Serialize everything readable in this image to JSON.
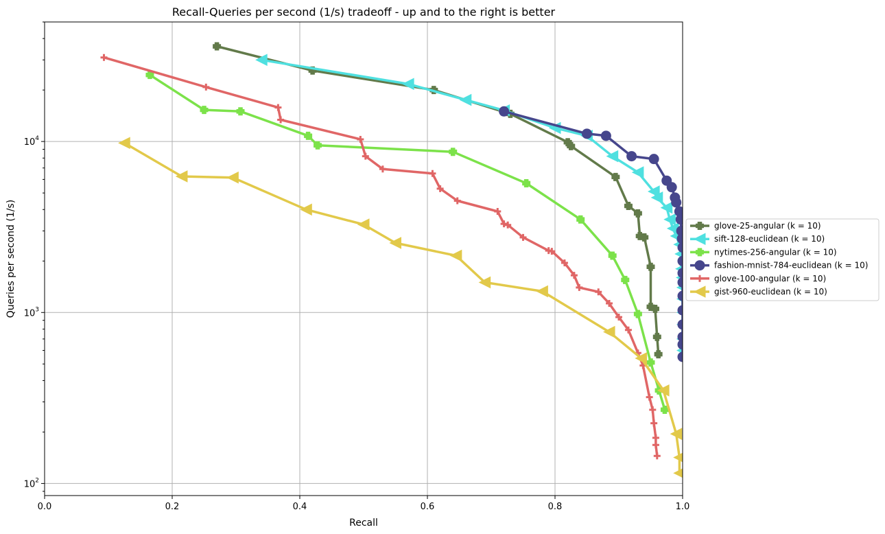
{
  "chart_data": {
    "type": "line",
    "title": "Recall-Queries per second (1/s) tradeoff - up and to the right is better",
    "xlabel": "Recall",
    "ylabel": "Queries per second (1/s)",
    "xlim": [
      0.0,
      1.0
    ],
    "ylim": [
      85,
      50000
    ],
    "yscale": "log",
    "grid": true,
    "legend_position": "right-outside",
    "x_ticks": [
      "0.0",
      "0.2",
      "0.4",
      "0.6",
      "0.8",
      "1.0"
    ],
    "y_ticks": [
      {
        "value": 100,
        "base": "10",
        "exp": "2"
      },
      {
        "value": 1000,
        "base": "10",
        "exp": "3"
      },
      {
        "value": 10000,
        "base": "10",
        "exp": "4"
      }
    ],
    "series": [
      {
        "name": "glove-25-angular (k = 10)",
        "color": "#627a4a",
        "marker": "plus-filled",
        "points": [
          [
            0.27,
            36000
          ],
          [
            0.42,
            26000
          ],
          [
            0.61,
            20000
          ],
          [
            0.73,
            14500
          ],
          [
            0.82,
            9900
          ],
          [
            0.825,
            9400
          ],
          [
            0.895,
            6200
          ],
          [
            0.915,
            4200
          ],
          [
            0.93,
            3800
          ],
          [
            0.933,
            2800
          ],
          [
            0.94,
            2750
          ],
          [
            0.95,
            1850
          ],
          [
            0.95,
            1080
          ],
          [
            0.957,
            1050
          ],
          [
            0.96,
            720
          ],
          [
            0.962,
            570
          ]
        ]
      },
      {
        "name": "sift-128-euclidean (k = 10)",
        "color": "#4fe0e0",
        "marker": "triangle-left",
        "points": [
          [
            0.34,
            30000
          ],
          [
            0.57,
            21700
          ],
          [
            0.66,
            17500
          ],
          [
            0.72,
            15200
          ],
          [
            0.8,
            12000
          ],
          [
            0.85,
            10800
          ],
          [
            0.89,
            8200
          ],
          [
            0.93,
            6600
          ],
          [
            0.955,
            5100
          ],
          [
            0.96,
            4700
          ],
          [
            0.975,
            4100
          ],
          [
            0.98,
            3500
          ],
          [
            0.985,
            3100
          ],
          [
            0.99,
            2800
          ],
          [
            0.995,
            2500
          ],
          [
            0.997,
            2200
          ],
          [
            0.998,
            1800
          ],
          [
            0.999,
            1600
          ],
          [
            1.0,
            1400
          ],
          [
            1.0,
            1200
          ],
          [
            1.0,
            1000
          ],
          [
            1.0,
            850
          ],
          [
            1.0,
            700
          ],
          [
            1.0,
            600
          ]
        ]
      },
      {
        "name": "nytimes-256-angular (k = 10)",
        "color": "#7ce24a",
        "marker": "plus-filled",
        "points": [
          [
            0.165,
            24500
          ],
          [
            0.25,
            15300
          ],
          [
            0.307,
            15000
          ],
          [
            0.413,
            10800
          ],
          [
            0.428,
            9500
          ],
          [
            0.64,
            8700
          ],
          [
            0.755,
            5700
          ],
          [
            0.84,
            3500
          ],
          [
            0.89,
            2150
          ],
          [
            0.91,
            1550
          ],
          [
            0.93,
            980
          ],
          [
            0.95,
            510
          ],
          [
            0.963,
            350
          ],
          [
            0.972,
            270
          ]
        ]
      },
      {
        "name": "fashion-mnist-784-euclidean (k = 10)",
        "color": "#46468c",
        "marker": "circle",
        "points": [
          [
            0.72,
            15000
          ],
          [
            0.85,
            11100
          ],
          [
            0.88,
            10800
          ],
          [
            0.92,
            8200
          ],
          [
            0.955,
            7900
          ],
          [
            0.975,
            5900
          ],
          [
            0.983,
            5400
          ],
          [
            0.988,
            4700
          ],
          [
            0.99,
            4400
          ],
          [
            0.995,
            3900
          ],
          [
            0.997,
            3500
          ],
          [
            0.998,
            3000
          ],
          [
            0.999,
            2700
          ],
          [
            1.0,
            2400
          ],
          [
            1.0,
            2000
          ],
          [
            1.0,
            1700
          ],
          [
            1.0,
            1500
          ],
          [
            1.0,
            1250
          ],
          [
            1.0,
            1030
          ],
          [
            1.0,
            850
          ],
          [
            1.0,
            720
          ],
          [
            1.0,
            650
          ],
          [
            1.0,
            550
          ]
        ]
      },
      {
        "name": "glove-100-angular (k = 10)",
        "color": "#e06666",
        "marker": "plus",
        "points": [
          [
            0.093,
            31000
          ],
          [
            0.253,
            20800
          ],
          [
            0.366,
            15800
          ],
          [
            0.37,
            13400
          ],
          [
            0.495,
            10300
          ],
          [
            0.503,
            8200
          ],
          [
            0.53,
            6900
          ],
          [
            0.608,
            6500
          ],
          [
            0.62,
            5300
          ],
          [
            0.647,
            4500
          ],
          [
            0.71,
            3900
          ],
          [
            0.72,
            3300
          ],
          [
            0.726,
            3250
          ],
          [
            0.75,
            2750
          ],
          [
            0.79,
            2300
          ],
          [
            0.795,
            2280
          ],
          [
            0.815,
            1950
          ],
          [
            0.83,
            1650
          ],
          [
            0.838,
            1400
          ],
          [
            0.868,
            1320
          ],
          [
            0.885,
            1130
          ],
          [
            0.9,
            940
          ],
          [
            0.915,
            790
          ],
          [
            0.93,
            580
          ],
          [
            0.938,
            490
          ],
          [
            0.948,
            320
          ],
          [
            0.953,
            270
          ],
          [
            0.955,
            225
          ],
          [
            0.958,
            185
          ],
          [
            0.958,
            168
          ],
          [
            0.96,
            145
          ]
        ]
      },
      {
        "name": "gist-960-euclidean (k = 10)",
        "color": "#e2c94a",
        "marker": "triangle-left",
        "points": [
          [
            0.125,
            9800
          ],
          [
            0.215,
            6250
          ],
          [
            0.295,
            6150
          ],
          [
            0.41,
            4000
          ],
          [
            0.5,
            3270
          ],
          [
            0.55,
            2550
          ],
          [
            0.645,
            2150
          ],
          [
            0.69,
            1500
          ],
          [
            0.78,
            1330
          ],
          [
            0.885,
            770
          ],
          [
            0.935,
            540
          ],
          [
            0.97,
            350
          ],
          [
            0.99,
            195
          ],
          [
            0.995,
            142
          ],
          [
            0.995,
            115
          ]
        ]
      }
    ]
  }
}
